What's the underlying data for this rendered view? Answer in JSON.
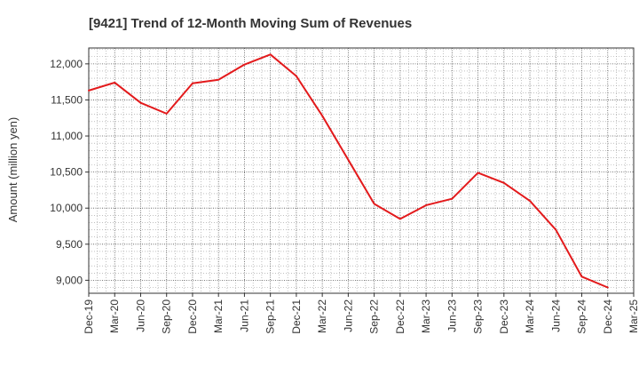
{
  "chart_data": {
    "type": "line",
    "title": "[9421]  Trend of 12-Month Moving Sum of Revenues",
    "xlabel": "",
    "ylabel": "Amount (million yen)",
    "ylim": [
      8820,
      12220
    ],
    "yticks": [
      9000,
      9500,
      10000,
      10500,
      11000,
      11500,
      12000
    ],
    "ytick_labels": [
      "9,000",
      "9,500",
      "10,000",
      "10,500",
      "11,000",
      "11,500",
      "12,000"
    ],
    "categories": [
      "Dec-19",
      "Mar-20",
      "Jun-20",
      "Sep-20",
      "Dec-20",
      "Mar-21",
      "Jun-21",
      "Sep-21",
      "Dec-21",
      "Mar-22",
      "Jun-22",
      "Sep-22",
      "Dec-22",
      "Mar-23",
      "Jun-23",
      "Sep-23",
      "Dec-23",
      "Mar-24",
      "Jun-24",
      "Sep-24",
      "Dec-24",
      "Mar-25"
    ],
    "series": [
      {
        "name": "",
        "color": "#e31a1c",
        "values": [
          11630,
          11740,
          11460,
          11310,
          11730,
          11780,
          11990,
          12130,
          11830,
          11280,
          10670,
          10060,
          9850,
          10040,
          10130,
          10490,
          10350,
          10100,
          9700,
          9050,
          8900,
          null
        ]
      }
    ],
    "grid": true,
    "grid_style": "dotted",
    "legend": "none"
  }
}
